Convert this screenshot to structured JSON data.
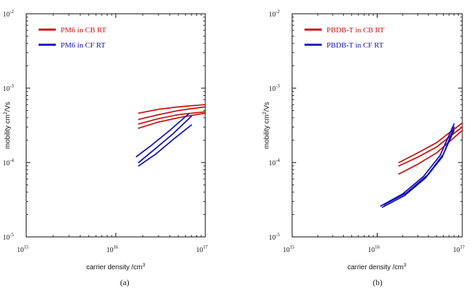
{
  "chart_data": [
    {
      "type": "line",
      "caption": "(a)",
      "xlabel": "carrier density  /cm",
      "xlabel_sup": "3",
      "ylabel": "mobility cm",
      "ylabel_sup": "2",
      "ylabel_tail": "/Vs",
      "x_scale": "log",
      "y_scale": "log",
      "xlim": [
        1000000000000000.0,
        1e+17
      ],
      "ylim": [
        1e-05,
        0.01
      ],
      "x_ticks": [
        {
          "base": "10",
          "exp": "15"
        },
        {
          "base": "10",
          "exp": "16"
        },
        {
          "base": "10",
          "exp": "17"
        }
      ],
      "y_ticks": [
        {
          "base": "10",
          "exp": "-2"
        },
        {
          "base": "10",
          "exp": "-3"
        },
        {
          "base": "10",
          "exp": "-4"
        },
        {
          "base": "10",
          "exp": "-5"
        }
      ],
      "x_tick_values": [
        1000000000000000.0,
        1e+16,
        1e+17
      ],
      "y_tick_values": [
        0.01,
        0.001,
        0.0001,
        1e-05
      ],
      "grid": false,
      "legend_position": "top-left",
      "series": [
        {
          "name": "PM6 in CB RT",
          "color": "#cc1111",
          "curves": [
            {
              "x": [
                1.8e+16,
                3e+16,
                5e+16,
                7e+16,
                1e+17
              ],
              "y": [
                0.00046,
                0.00052,
                0.00056,
                0.00058,
                0.0006
              ]
            },
            {
              "x": [
                1.8e+16,
                3e+16,
                5e+16,
                7e+16,
                1e+17
              ],
              "y": [
                0.00038,
                0.00044,
                0.0005,
                0.00053,
                0.00056
              ]
            },
            {
              "x": [
                1.8e+16,
                3e+16,
                5e+16,
                7e+16,
                1e+17
              ],
              "y": [
                0.00033,
                0.00039,
                0.00044,
                0.00046,
                0.00048
              ]
            },
            {
              "x": [
                1.8e+16,
                3e+16,
                5e+16,
                7e+16,
                1e+17
              ],
              "y": [
                0.00029,
                0.00035,
                0.0004,
                0.00043,
                0.00046
              ]
            }
          ]
        },
        {
          "name": "PM6 in CF RT",
          "color": "#1111bb",
          "curves": [
            {
              "x": [
                1.7e+16,
                2.5e+16,
                4e+16,
                6.5e+16
              ],
              "y": [
                0.00012,
                0.00017,
                0.00027,
                0.00045
              ]
            },
            {
              "x": [
                1.8e+16,
                2.7e+16,
                4.3e+16,
                7e+16
              ],
              "y": [
                0.0001,
                0.00015,
                0.00024,
                0.00042
              ]
            },
            {
              "x": [
                1.8e+16,
                2.8e+16,
                4.5e+16,
                7e+16
              ],
              "y": [
                9e-05,
                0.00013,
                0.00021,
                0.00032
              ]
            }
          ]
        }
      ]
    },
    {
      "type": "line",
      "caption": "(b)",
      "xlabel": "carrier density  /cm",
      "xlabel_sup": "3",
      "ylabel": "mobility cm",
      "ylabel_sup": "2",
      "ylabel_tail": "/Vs",
      "x_scale": "log",
      "y_scale": "log",
      "xlim": [
        1000000000000000.0,
        1e+17
      ],
      "ylim": [
        1e-05,
        0.01
      ],
      "x_ticks": [
        {
          "base": "10",
          "exp": "15"
        },
        {
          "base": "10",
          "exp": "16"
        },
        {
          "base": "10",
          "exp": "17"
        }
      ],
      "y_ticks": [
        {
          "base": "10",
          "exp": "-2"
        },
        {
          "base": "10",
          "exp": "-3"
        },
        {
          "base": "10",
          "exp": "-4"
        },
        {
          "base": "10",
          "exp": "-5"
        }
      ],
      "x_tick_values": [
        1000000000000000.0,
        1e+16,
        1e+17
      ],
      "y_tick_values": [
        0.01,
        0.001,
        0.0001,
        1e-05
      ],
      "grid": false,
      "legend_position": "top-left",
      "series": [
        {
          "name": "PBDB-T in CB RT",
          "color": "#cc1111",
          "curves": [
            {
              "x": [
                1.8e+16,
                3e+16,
                5e+16,
                7e+16,
                1e+17
              ],
              "y": [
                0.0001,
                0.000135,
                0.000185,
                0.00025,
                0.00034
              ]
            },
            {
              "x": [
                1.8e+16,
                3e+16,
                5e+16,
                7e+16,
                1e+17
              ],
              "y": [
                9e-05,
                0.000118,
                0.000162,
                0.00022,
                0.0003
              ]
            },
            {
              "x": [
                1.8e+16,
                3e+16,
                5e+16,
                7e+16,
                1e+17
              ],
              "y": [
                7e-05,
                9.5e-05,
                0.000135,
                0.00019,
                0.00027
              ]
            }
          ]
        },
        {
          "name": "PBDB-T in CF RT",
          "color": "#1111bb",
          "curves": [
            {
              "x": [
                1.1e+16,
                2e+16,
                3.5e+16,
                5.5e+16,
                8e+16
              ],
              "y": [
                2.6e-05,
                3.8e-05,
                6.5e-05,
                0.000125,
                0.00033
              ]
            },
            {
              "x": [
                1.15e+16,
                2.1e+16,
                3.7e+16,
                5.8e+16,
                8e+16
              ],
              "y": [
                2.5e-05,
                3.6e-05,
                6.2e-05,
                0.000118,
                0.0003
              ]
            },
            {
              "x": [
                1.2e+16,
                2.2e+16,
                3.9e+16,
                6e+16,
                8e+16
              ],
              "y": [
                2.7e-05,
                3.9e-05,
                6.8e-05,
                0.00013,
                0.00027
              ]
            }
          ]
        }
      ]
    }
  ]
}
